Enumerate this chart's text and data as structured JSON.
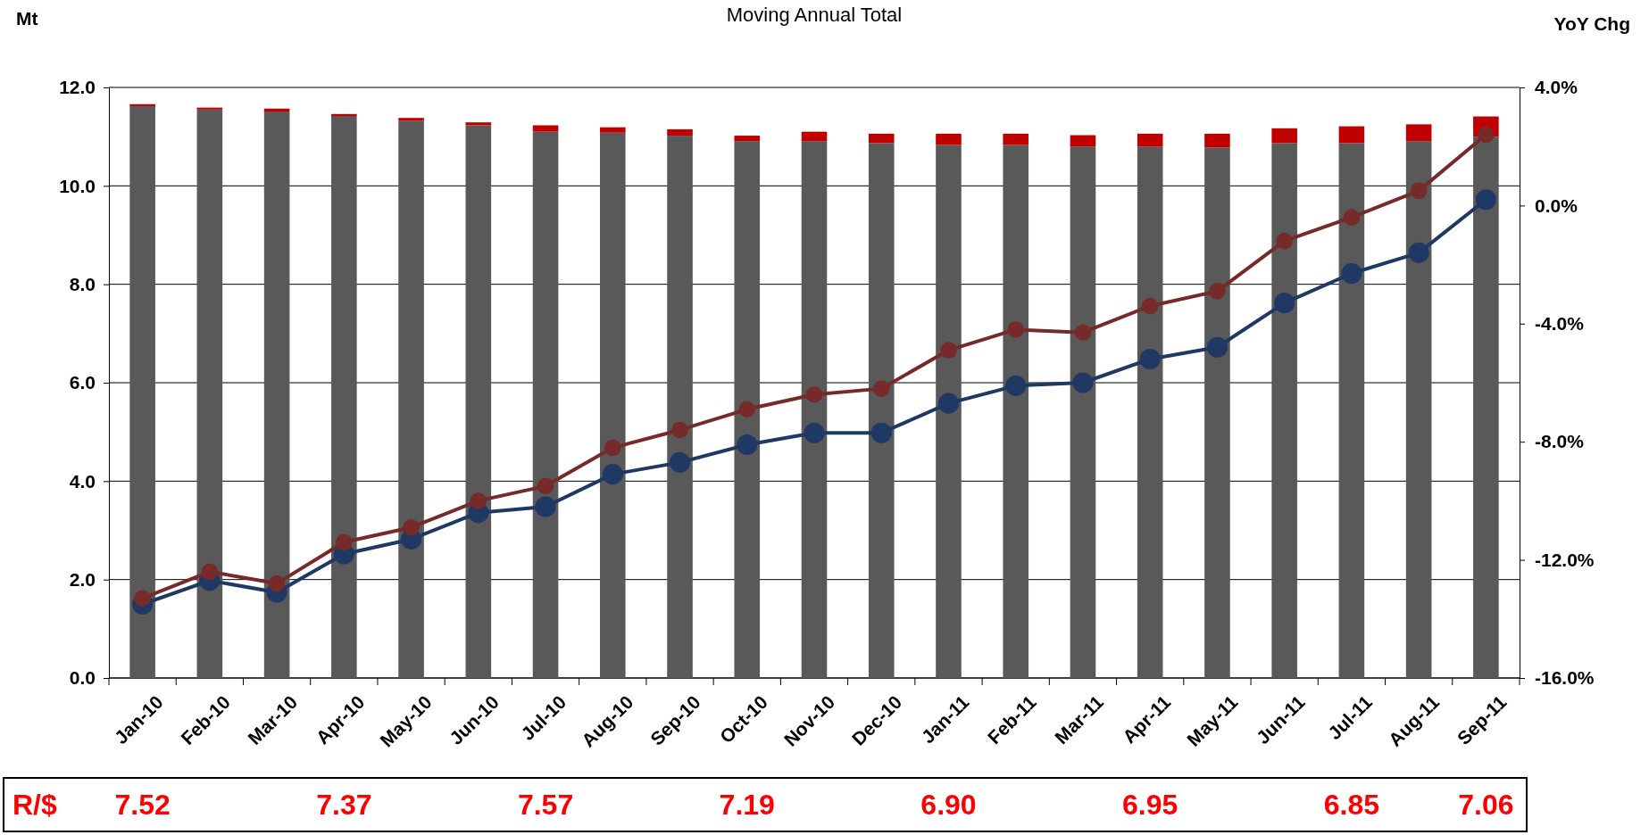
{
  "chart_data": {
    "type": "bar",
    "title": "Moving Annual Total",
    "ylabel": "Mt",
    "y2label": "YoY Chg",
    "categories": [
      "Jan-10",
      "Feb-10",
      "Mar-10",
      "Apr-10",
      "May-10",
      "Jun-10",
      "Jul-10",
      "Aug-10",
      "Sep-10",
      "Oct-10",
      "Nov-10",
      "Dec-10",
      "Jan-11",
      "Feb-11",
      "Mar-11",
      "Apr-11",
      "May-11",
      "Jun-11",
      "Jul-11",
      "Aug-11",
      "Sep-11"
    ],
    "stacked": true,
    "series": [
      {
        "color": "#595959",
        "values": [
          11.62,
          11.55,
          11.51,
          11.42,
          11.32,
          11.23,
          11.1,
          11.08,
          11.02,
          10.91,
          10.91,
          10.87,
          10.83,
          10.83,
          10.8,
          10.8,
          10.78,
          10.87,
          10.87,
          10.91,
          11.0
        ]
      },
      {
        "color": "#c00000",
        "values": [
          0.04,
          0.04,
          0.06,
          0.04,
          0.06,
          0.06,
          0.13,
          0.11,
          0.13,
          0.11,
          0.19,
          0.19,
          0.23,
          0.23,
          0.23,
          0.26,
          0.28,
          0.3,
          0.34,
          0.34,
          0.41
        ]
      },
      {
        "type": "line",
        "axis": "y2",
        "color": "#1f3864",
        "values": [
          -13.5,
          -12.7,
          -13.1,
          -11.8,
          -11.3,
          -10.4,
          -10.2,
          -9.1,
          -8.7,
          -8.1,
          -7.7,
          -7.7,
          -6.7,
          -6.1,
          -6.0,
          -5.2,
          -4.8,
          -3.3,
          -2.3,
          -1.6,
          0.2
        ]
      },
      {
        "type": "line",
        "axis": "y2",
        "color": "#772a2a",
        "values": [
          -13.3,
          -12.4,
          -12.8,
          -11.4,
          -10.9,
          -10.0,
          -9.5,
          -8.2,
          -7.6,
          -6.9,
          -6.4,
          -6.2,
          -4.9,
          -4.2,
          -4.3,
          -3.4,
          -2.9,
          -1.2,
          -0.4,
          0.5,
          2.4
        ]
      }
    ],
    "ylim": [
      0,
      12
    ],
    "yticks": [
      {
        "value": 0,
        "label": "0.0"
      },
      {
        "value": 2,
        "label": "2.0"
      },
      {
        "value": 4,
        "label": "4.0"
      },
      {
        "value": 6,
        "label": "6.0"
      },
      {
        "value": 8,
        "label": "8.0"
      },
      {
        "value": 10,
        "label": "10.0"
      },
      {
        "value": 12,
        "label": "12.0"
      }
    ],
    "y2lim": [
      -16,
      4
    ],
    "y2ticks": [
      {
        "value": -16,
        "label": "-16.0%"
      },
      {
        "value": -12,
        "label": "-12.0%"
      },
      {
        "value": -8,
        "label": "-8.0%"
      },
      {
        "value": -4,
        "label": "-4.0%"
      },
      {
        "value": 0,
        "label": "0.0%"
      },
      {
        "value": 4,
        "label": "4.0%"
      }
    ],
    "grid": "y",
    "marker": "circle",
    "line_style": "solid",
    "annotations": [
      "R/$",
      "7.52",
      "7.37",
      "7.57",
      "7.19",
      "6.90",
      "6.95",
      "6.85",
      "7.06"
    ]
  }
}
